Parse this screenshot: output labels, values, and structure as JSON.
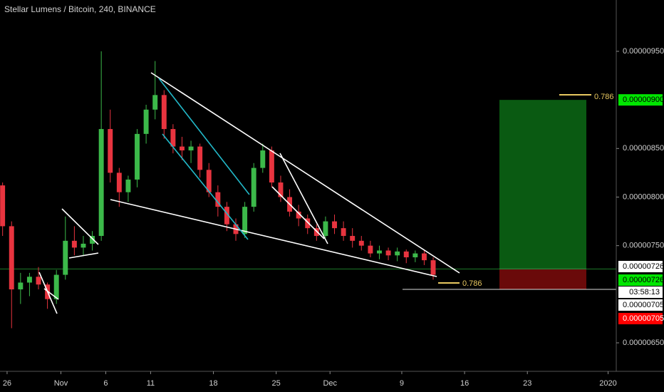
{
  "chart_data": {
    "type": "candlestick",
    "title": "Stellar Lumens / Bitcoin, 240, BINANCE",
    "x": [
      -0.5,
      0.5,
      1.5,
      2.5,
      3.5,
      4.5,
      5.5,
      6.5,
      7.5,
      8.5,
      9.5,
      10.5,
      11.5,
      12.5,
      13.5,
      14.5,
      15.5,
      16.5,
      17.5,
      18.5,
      19.5,
      20.5,
      21.5,
      22.5,
      23.5,
      24.5,
      25.5,
      26.5,
      27.5,
      28.5,
      29.5,
      30.5,
      31.5,
      32.5,
      33.5,
      34.5,
      35.5,
      36.5,
      37.5,
      38.5,
      39.5,
      40.5,
      41.5,
      42.5,
      43.5,
      44.5,
      45.5,
      46.5,
      47.5
    ],
    "open": [
      8.12e-06,
      7.7e-06,
      7.05e-06,
      7.12e-06,
      7.18e-06,
      7.1e-06,
      6.95e-06,
      7.2e-06,
      7.55e-06,
      7.48e-06,
      7.52e-06,
      7.6e-06,
      8.7e-06,
      8.25e-06,
      8.05e-06,
      8.18e-06,
      8.65e-06,
      8.9e-06,
      9.05e-06,
      8.7e-06,
      8.52e-06,
      8.48e-06,
      8.52e-06,
      8.28e-06,
      8.05e-06,
      7.9e-06,
      7.72e-06,
      7.62e-06,
      7.9e-06,
      8.3e-06,
      8.48e-06,
      8.15e-06,
      8e-06,
      7.85e-06,
      7.78e-06,
      7.68e-06,
      7.6e-06,
      7.75e-06,
      7.68e-06,
      7.6e-06,
      7.55e-06,
      7.5e-06,
      7.42e-06,
      7.45e-06,
      7.4e-06,
      7.44e-06,
      7.38e-06,
      7.42e-06,
      7.35e-06
    ],
    "high": [
      8.15e-06,
      7.75e-06,
      7.22e-06,
      7.22e-06,
      7.28e-06,
      7.12e-06,
      7.25e-06,
      7.8e-06,
      7.7e-06,
      7.6e-06,
      7.65e-06,
      9.5e-06,
      8.9e-06,
      8.3e-06,
      8.22e-06,
      8.7e-06,
      8.95e-06,
      9.4e-06,
      9.1e-06,
      8.75e-06,
      8.62e-06,
      8.58e-06,
      8.55e-06,
      8.35e-06,
      8.12e-06,
      7.95e-06,
      7.78e-06,
      7.95e-06,
      8.35e-06,
      8.55e-06,
      8.52e-06,
      8.22e-06,
      8.08e-06,
      7.92e-06,
      7.82e-06,
      7.72e-06,
      7.8e-06,
      7.82e-06,
      7.75e-06,
      7.68e-06,
      7.6e-06,
      7.55e-06,
      7.5e-06,
      7.48e-06,
      7.48e-06,
      7.46e-06,
      7.45e-06,
      7.46e-06,
      7.38e-06
    ],
    "low": [
      7.6e-06,
      6.65e-06,
      6.9e-06,
      6.98e-06,
      7.05e-06,
      6.85e-06,
      6.9e-06,
      7.15e-06,
      7.4e-06,
      7.4e-06,
      7.45e-06,
      7.55e-06,
      8.15e-06,
      7.9e-06,
      7.95e-06,
      8.1e-06,
      8.55e-06,
      8.8e-06,
      8.6e-06,
      8.45e-06,
      8.38e-06,
      8.35e-06,
      8.2e-06,
      8e-06,
      7.8e-06,
      7.65e-06,
      7.55e-06,
      7.58e-06,
      7.85e-06,
      8.25e-06,
      8.1e-06,
      7.95e-06,
      7.8e-06,
      7.7e-06,
      7.62e-06,
      7.55e-06,
      7.58e-06,
      7.62e-06,
      7.55e-06,
      7.48e-06,
      7.45e-06,
      7.38e-06,
      7.36e-06,
      7.35e-06,
      7.34e-06,
      7.32e-06,
      7.33e-06,
      7.3e-06,
      7.15e-06
    ],
    "close": [
      7.7e-06,
      7.05e-06,
      7.12e-06,
      7.18e-06,
      7.1e-06,
      6.95e-06,
      7.2e-06,
      7.55e-06,
      7.48e-06,
      7.52e-06,
      7.6e-06,
      8.7e-06,
      8.25e-06,
      8.05e-06,
      8.18e-06,
      8.65e-06,
      8.9e-06,
      9.05e-06,
      8.7e-06,
      8.52e-06,
      8.48e-06,
      8.52e-06,
      8.28e-06,
      8.05e-06,
      7.9e-06,
      7.72e-06,
      7.62e-06,
      7.9e-06,
      8.3e-06,
      8.48e-06,
      8.15e-06,
      8e-06,
      7.85e-06,
      7.78e-06,
      7.68e-06,
      7.6e-06,
      7.75e-06,
      7.68e-06,
      7.6e-06,
      7.55e-06,
      7.5e-06,
      7.42e-06,
      7.45e-06,
      7.4e-06,
      7.44e-06,
      7.38e-06,
      7.42e-06,
      7.35e-06,
      7.2e-06
    ],
    "up_color": "#3cb94a",
    "down_color": "#e8343f",
    "xlim": [
      -0.79,
      67.91
    ],
    "xticks": [
      {
        "value": 0,
        "label": "26"
      },
      {
        "value": 6,
        "label": "Nov"
      },
      {
        "value": 11,
        "label": "6"
      },
      {
        "value": 16,
        "label": "11"
      },
      {
        "value": 23,
        "label": "18"
      },
      {
        "value": 30,
        "label": "25"
      },
      {
        "value": 36,
        "label": "Dec"
      },
      {
        "value": 44,
        "label": "9"
      },
      {
        "value": 51,
        "label": "16"
      },
      {
        "value": 58,
        "label": "23"
      },
      {
        "value": 67,
        "label": "2020"
      }
    ],
    "ylim": [
      6.214e-06,
      1.0028e-05
    ],
    "yticks": [
      {
        "value": 9.5e-06,
        "label": "0.00000950"
      },
      {
        "value": 8.5e-06,
        "label": "0.00000850"
      },
      {
        "value": 8e-06,
        "label": "0.00000800"
      },
      {
        "value": 7.5e-06,
        "label": "0.00000750"
      },
      {
        "value": 6.5e-06,
        "label": "0.00000650"
      }
    ],
    "price_labels": [
      {
        "value": 9e-06,
        "label": "0.00000900",
        "color": "#00e600"
      },
      {
        "value": 7.26e-06,
        "label": "0.00000726",
        "color": "#ffffff"
      },
      {
        "value": 7.26e-06,
        "label": "0.00000726",
        "color": "#00e600"
      },
      {
        "value": 7.05e-06,
        "label": "0.00000705",
        "color": "#ffffff"
      },
      {
        "value": 7.05e-06,
        "label": "0.00000705",
        "color": "#ff0000"
      }
    ],
    "countdown": "03:58:13",
    "fib_labels": [
      "0.786",
      "0.786"
    ]
  }
}
